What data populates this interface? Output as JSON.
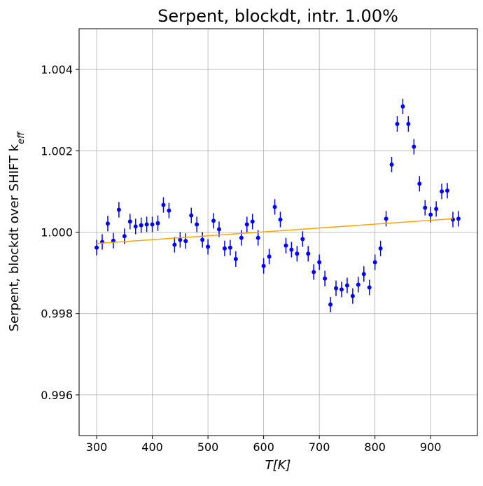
{
  "chart_data": {
    "type": "scatter",
    "title": "Serpent, blockdt, intr. 1.00%",
    "xlabel": "T[K]",
    "ylabel": "Serpent, blockdt over SHIFT k",
    "ylabel_sub": "eff",
    "xlim": [
      268.5,
      984
    ],
    "ylim": [
      0.995,
      1.005
    ],
    "xticks": [
      300,
      400,
      500,
      600,
      700,
      800,
      900
    ],
    "yticks": [
      0.996,
      0.998,
      {
        "value": 1,
        "label": "1.000"
      },
      1.002,
      1.004
    ],
    "grid": true,
    "x": [
      300,
      310,
      320,
      330,
      340,
      350,
      360,
      370,
      380,
      390,
      400,
      410,
      420,
      430,
      440,
      450,
      460,
      470,
      480,
      490,
      500,
      510,
      520,
      530,
      540,
      550,
      560,
      570,
      580,
      590,
      600,
      610,
      620,
      630,
      640,
      650,
      660,
      670,
      680,
      690,
      700,
      710,
      720,
      730,
      740,
      750,
      760,
      770,
      780,
      790,
      800,
      810,
      820,
      830,
      840,
      850,
      860,
      870,
      880,
      890,
      900,
      910,
      920,
      930,
      940,
      950
    ],
    "series": [
      {
        "type": "errorbar",
        "color": "#0000ff",
        "values": [
          0.99962,
          0.99976,
          1.00021,
          0.99979,
          1.00055,
          0.9999,
          1.00026,
          1.00014,
          1.00017,
          1.00019,
          1.00019,
          1.00022,
          1.00067,
          1.00053,
          0.99969,
          0.99981,
          0.99978,
          1.00041,
          1.00019,
          0.99981,
          0.99964,
          1.00028,
          1.00007,
          0.9996,
          0.99962,
          0.99934,
          0.99986,
          1.00019,
          1.00026,
          0.99986,
          0.99917,
          0.9994,
          1.00062,
          1.00031,
          0.99967,
          0.99957,
          0.99947,
          0.99983,
          0.99947,
          0.99902,
          0.99926,
          0.99886,
          0.99822,
          0.99862,
          0.99859,
          0.99869,
          0.99843,
          0.99871,
          0.99897,
          0.99864,
          0.99926,
          0.9996,
          1.00033,
          1.00166,
          1.00266,
          1.00309,
          1.00266,
          1.0021,
          1.00119,
          1.0006,
          1.00043,
          1.00057,
          1.001,
          1.00102,
          1.00031,
          1.00033
        ],
        "errors": [
          0.00019,
          0.00019,
          0.00019,
          0.00019,
          0.00019,
          0.00019,
          0.00019,
          0.00019,
          0.00019,
          0.00019,
          0.00019,
          0.00019,
          0.00019,
          0.00019,
          0.00019,
          0.00019,
          0.00019,
          0.00019,
          0.00019,
          0.00019,
          0.00019,
          0.00019,
          0.00019,
          0.00019,
          0.00019,
          0.00019,
          0.00019,
          0.00019,
          0.00019,
          0.00019,
          0.00019,
          0.00019,
          0.00019,
          0.00019,
          0.00019,
          0.00019,
          0.00019,
          0.00019,
          0.00019,
          0.00019,
          0.00019,
          0.00019,
          0.00019,
          0.00019,
          0.00019,
          0.00019,
          0.00019,
          0.00019,
          0.00019,
          0.00019,
          0.00019,
          0.00019,
          0.00019,
          0.00019,
          0.00019,
          0.00019,
          0.00019,
          0.00019,
          0.00019,
          0.00019,
          0.00019,
          0.00019,
          0.00019,
          0.00019,
          0.00019,
          0.00019
        ]
      },
      {
        "type": "line",
        "color": "#ffa500",
        "x": [
          300,
          940
        ],
        "values": [
          0.99972,
          1.00033
        ]
      }
    ]
  }
}
